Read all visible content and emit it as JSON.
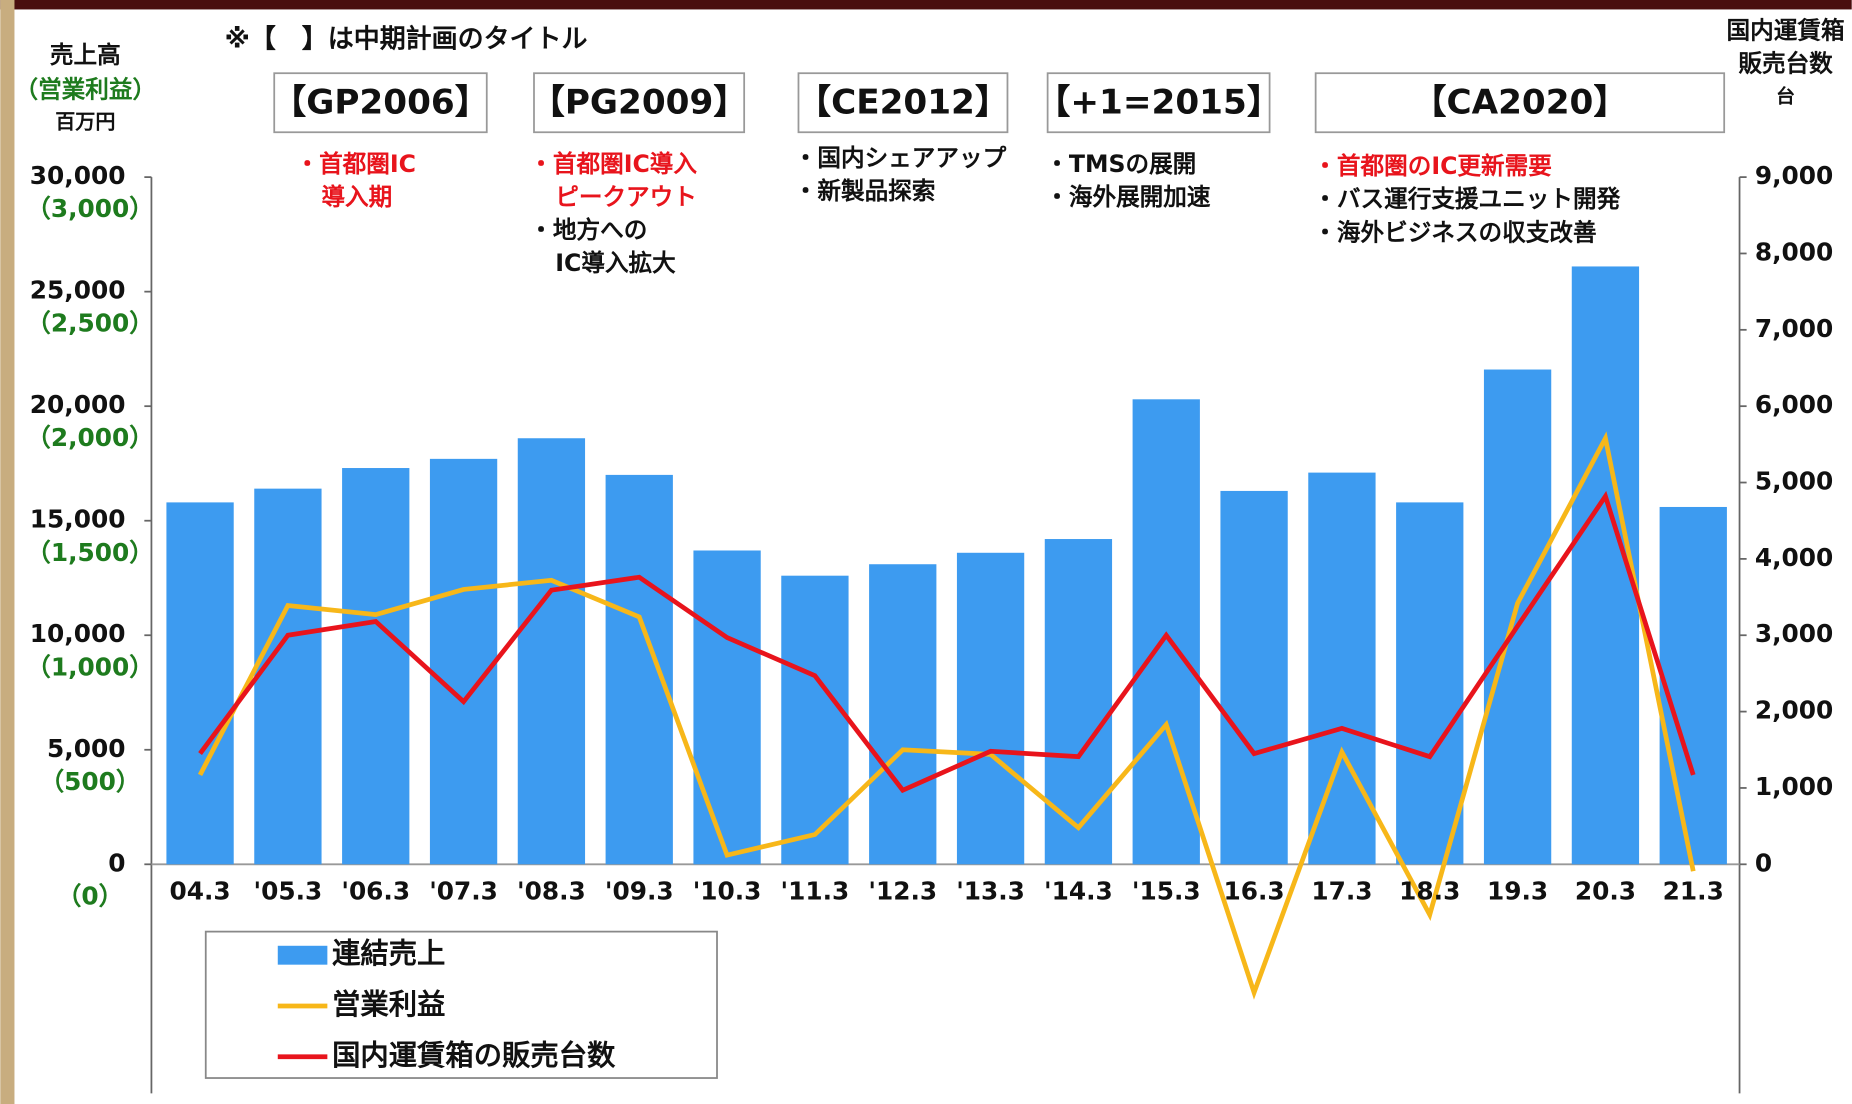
{
  "chart_data": {
    "type": "bar",
    "note": "※【　】は中期計画のタイトル",
    "left_axis_title": [
      {
        "text": "売上高",
        "color": "#111111"
      },
      {
        "text": "（営業利益）",
        "color": "#1e7b1e"
      },
      {
        "text": "百万円",
        "color": "#111111"
      }
    ],
    "right_axis_title": [
      "国内運賃箱",
      "販売台数",
      "台"
    ],
    "categories": [
      "04.3",
      "'05.3",
      "'06.3",
      "'07.3",
      "'08.3",
      "'09.3",
      "'10.3",
      "'11.3",
      "'12.3",
      "'13.3",
      "'14.3",
      "'15.3",
      "16.3",
      "17.3",
      "18.3",
      "19.3",
      "20.3",
      "21.3"
    ],
    "series": [
      {
        "name": "連結売上",
        "type": "bar",
        "color": "#3d9bf0",
        "values": [
          15800,
          16400,
          17300,
          17700,
          18600,
          17000,
          13700,
          12600,
          13100,
          13600,
          14200,
          20300,
          16300,
          17100,
          15800,
          21600,
          26100,
          15600
        ]
      },
      {
        "name": "営業利益",
        "type": "line",
        "axis": "y3",
        "color": "#f7b719",
        "values": [
          390,
          1130,
          1090,
          1200,
          1240,
          1080,
          40,
          130,
          500,
          480,
          160,
          610,
          -560,
          490,
          -220,
          1140,
          1860,
          -30
        ]
      },
      {
        "name": "国内運賃箱の販売台数",
        "type": "line",
        "axis": "y2",
        "color": "#e8141c",
        "values": [
          1450,
          3000,
          3180,
          2130,
          3590,
          3760,
          2970,
          2470,
          970,
          1480,
          1410,
          3000,
          1450,
          1780,
          1410,
          3120,
          4820,
          1170
        ]
      }
    ],
    "ylim": [
      -10000,
      30000
    ],
    "yticks": [
      {
        "value": 0,
        "label": "0"
      },
      {
        "value": 5000,
        "label": "5,000"
      },
      {
        "value": 10000,
        "label": "10,000"
      },
      {
        "value": 15000,
        "label": "15,000"
      },
      {
        "value": 20000,
        "label": "20,000"
      },
      {
        "value": 25000,
        "label": "25,000"
      },
      {
        "value": 30000,
        "label": "30,000"
      }
    ],
    "y3lim": [
      -1000,
      3000
    ],
    "y3ticks": [
      {
        "value": 0,
        "label": "（0）"
      },
      {
        "value": 500,
        "label": "（500）"
      },
      {
        "value": 1000,
        "label": "（1,000）"
      },
      {
        "value": 1500,
        "label": "（1,500）"
      },
      {
        "value": 2000,
        "label": "（2,000）"
      },
      {
        "value": 2500,
        "label": "（2,500）"
      },
      {
        "value": 3000,
        "label": "（3,000）"
      }
    ],
    "y2lim": [
      -3000,
      9000
    ],
    "y2ticks": [
      0,
      {
        "value": 1000,
        "label": "1,000"
      },
      {
        "value": 2000,
        "label": "2,000"
      },
      {
        "value": 3000,
        "label": "3,000"
      },
      {
        "value": 4000,
        "label": "4,000"
      },
      {
        "value": 5000,
        "label": "5,000"
      },
      {
        "value": 6000,
        "label": "6,000"
      },
      {
        "value": 7000,
        "label": "7,000"
      },
      {
        "value": 8000,
        "label": "8,000"
      },
      {
        "value": 9000,
        "label": "9,000"
      }
    ],
    "plans": [
      {
        "title": "【GP2006】",
        "bullets": [
          {
            "lines": [
              "・首都圏IC",
              "導入期"
            ],
            "color": "#e8141c"
          }
        ]
      },
      {
        "title": "【PG2009】",
        "bullets": [
          {
            "lines": [
              "・首都圏IC導入",
              "ピークアウト"
            ],
            "color": "#e8141c"
          },
          {
            "lines": [
              "・地方への",
              "IC導入拡大"
            ],
            "color": "#111111"
          }
        ]
      },
      {
        "title": "【CE2012】",
        "bullets": [
          {
            "lines": [
              "・国内シェアアップ"
            ],
            "color": "#111111"
          },
          {
            "lines": [
              "・新製品探索"
            ],
            "color": "#111111"
          }
        ]
      },
      {
        "title": "【+1=2015】",
        "bullets": [
          {
            "lines": [
              "・TMSの展開"
            ],
            "color": "#111111"
          },
          {
            "lines": [
              "・海外展開加速"
            ],
            "color": "#111111"
          }
        ]
      },
      {
        "title": "【CA2020】",
        "bullets": [
          {
            "lines": [
              "・首都圏のIC更新需要"
            ],
            "color": "#e8141c"
          },
          {
            "lines": [
              "・バス運行支援ユニット開発"
            ],
            "color": "#111111"
          },
          {
            "lines": [
              "・海外ビジネスの収支改善"
            ],
            "color": "#111111"
          }
        ]
      }
    ]
  }
}
